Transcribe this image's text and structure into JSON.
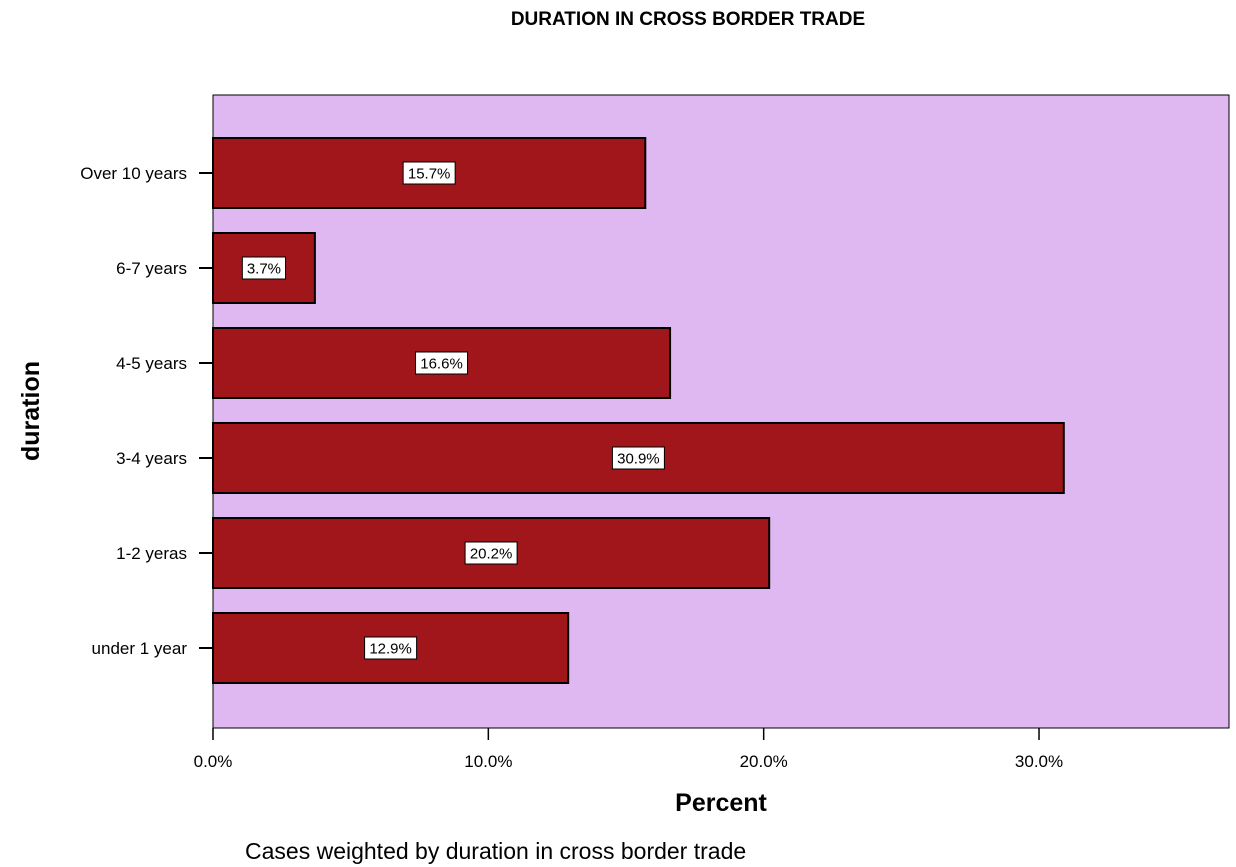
{
  "chart_data": {
    "type": "bar",
    "orientation": "horizontal",
    "title": "DURATION IN CROSS BORDER TRADE",
    "xlabel": "Percent",
    "ylabel": "duration",
    "categories": [
      "Over 10 years",
      "6-7 years",
      "4-5 years",
      "3-4 years",
      "1-2 yeras",
      "under 1 year"
    ],
    "values": [
      15.7,
      3.7,
      16.6,
      30.9,
      20.2,
      12.9
    ],
    "value_labels": [
      "15.7%",
      "3.7%",
      "16.6%",
      "30.9%",
      "20.2%",
      "12.9%"
    ],
    "xticks": [
      0,
      10,
      20,
      30
    ],
    "xtick_labels": [
      "0.0%",
      "10.0%",
      "20.0%",
      "30.0%"
    ],
    "xlim": [
      0,
      36.9
    ],
    "grid": false,
    "legend": "none",
    "colors": {
      "plot_background": "#dfb8f2",
      "bar_fill": "#a0161a",
      "bar_stroke": "#000000",
      "label_box": "#ffffff"
    },
    "footnote": "Cases weighted by duration in cross border trade"
  }
}
